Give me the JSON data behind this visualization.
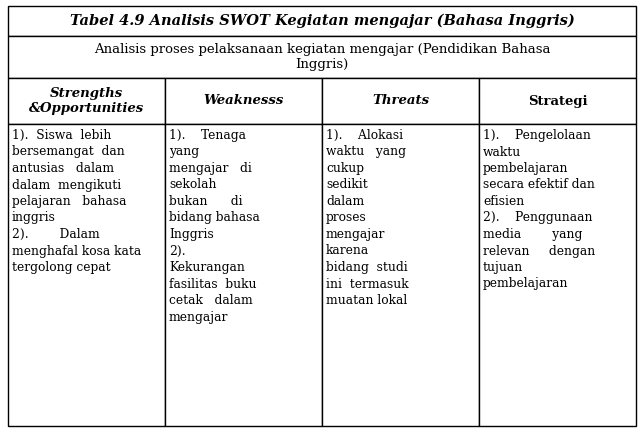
{
  "title": "Tabel 4.9 Analisis SWOT Kegiatan mengajar (Bahasa Inggris)",
  "subtitle": "Analisis proses pelaksanaan kegiatan mengajar (Pendidikan Bahasa\nInggris)",
  "col_headers": [
    "Strengths\n&Opportunities",
    "Weaknesss",
    "Threats",
    "Strategi"
  ],
  "cell_col0": "1).  Siswa  lebih\nbersemangat  dan\nantusias   dalam\ndalam  mengikuti\npelajaran   bahasa\ninggris\n2).        Dalam\nmenghafal kosa kata\ntergolong cepat",
  "cell_col1": "1).    Tenaga\nyang\nmengajar   di\nsekolah\nbukan      di\nbidang bahasa\nInggris\n2).\nKekurangan\nfasilitas  buku\ncetak   dalam\nmengajar",
  "cell_col2": "1).    Alokasi\nwaktu   yang\ncukup\nsedikit\ndalam\nproses\nmengajar\nkarena\nbidang  studi\nini  termasuk\nmuatan lokal",
  "cell_col3": "1).    Pengelolaan\nwaktu\npembelajaran\nsecara efektif dan\nefisien\n2).    Penggunaan\nmedia        yang\nrelevan     dengan\ntujuan\npembelajaran",
  "fig_width": 6.44,
  "fig_height": 4.32,
  "dpi": 100,
  "bg_color": "#ffffff",
  "border_color": "#000000",
  "title_fontsize": 10.5,
  "subtitle_fontsize": 9.5,
  "header_fontsize": 9.5,
  "cell_fontsize": 8.8,
  "lw": 1.0
}
